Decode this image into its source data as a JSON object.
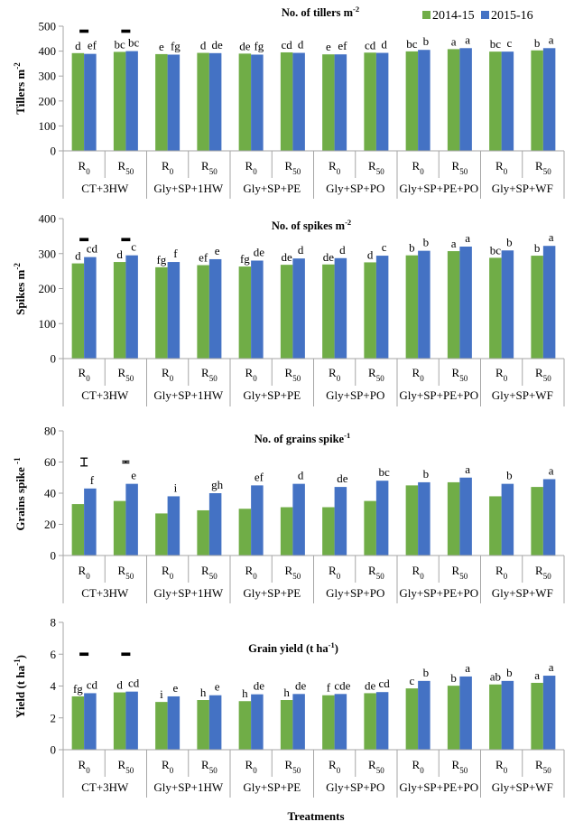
{
  "colors": {
    "series_2014": "#70ad47",
    "series_2015": "#4472c4",
    "axis": "#a6a6a6",
    "errbar": "#000000"
  },
  "legend": {
    "position": "top-right",
    "items": [
      "2014-15",
      "2015-16"
    ]
  },
  "x_axis_title": "Treatments",
  "categories": [
    "R0",
    "R50",
    "R0",
    "R50",
    "R0",
    "R50",
    "R0",
    "R50",
    "R0",
    "R50",
    "R0",
    "R50"
  ],
  "category_sub": [
    "0",
    "50",
    "0",
    "50",
    "0",
    "50",
    "0",
    "50",
    "0",
    "50",
    "0",
    "50"
  ],
  "groups": [
    "CT+3HW",
    "Gly+SP+1HW",
    "Gly+SP+PE",
    "Gly+SP+PO",
    "Gly+SP+PE+PO",
    "Gly+SP+WF"
  ],
  "chart_data": [
    {
      "type": "bar",
      "title": "No. of tillers m",
      "title_sup": "-2",
      "ylabel": "Tillers  m",
      "ylabel_sup": "-2",
      "ylim": [
        0,
        500
      ],
      "yticks": [
        0,
        100,
        200,
        300,
        400,
        500
      ],
      "series": [
        {
          "name": "2014-15",
          "values": [
            392,
            397,
            388,
            393,
            390,
            395,
            387,
            394,
            399,
            408,
            398,
            403
          ],
          "letters": [
            "d",
            "bc",
            "e",
            "d",
            "de",
            "cd",
            "e",
            "cd",
            "bc",
            "a",
            "bc",
            "b"
          ]
        },
        {
          "name": "2015-16",
          "values": [
            389,
            400,
            386,
            392,
            386,
            393,
            387,
            393,
            405,
            412,
            398,
            412
          ],
          "letters": [
            "ef",
            "bc",
            "fg",
            "de",
            "fg",
            "d",
            "ef",
            "d",
            "b",
            "a",
            "c",
            "a"
          ]
        }
      ],
      "error_bars": [
        {
          "group": 0,
          "value": 480
        },
        {
          "group": 1,
          "value": 480
        }
      ]
    },
    {
      "type": "bar",
      "title": "No. of spikes m",
      "title_sup": "-2",
      "ylabel": "Spikes  m",
      "ylabel_sup": "-2",
      "ylim": [
        0,
        400
      ],
      "yticks": [
        0,
        100,
        200,
        300,
        400
      ],
      "series": [
        {
          "name": "2014-15",
          "values": [
            272,
            276,
            261,
            267,
            263,
            268,
            269,
            275,
            295,
            307,
            288,
            294
          ],
          "letters": [
            "d",
            "d",
            "fg",
            "ef",
            "fg",
            "de",
            "de",
            "d",
            "b",
            "a",
            "bc",
            "b"
          ]
        },
        {
          "name": "2015-16",
          "values": [
            290,
            295,
            276,
            284,
            280,
            286,
            287,
            294,
            308,
            320,
            309,
            322
          ],
          "letters": [
            "cd",
            "c",
            "f",
            "e",
            "de",
            "d",
            "d",
            "c",
            "b",
            "a",
            "b",
            "a"
          ]
        }
      ],
      "error_bars": [
        {
          "group": 0,
          "value": 340
        },
        {
          "group": 1,
          "value": 340
        }
      ]
    },
    {
      "type": "bar",
      "title": "No. of grains spike",
      "title_sup": "-1",
      "ylabel": "Grains spike ",
      "ylabel_sup": "-1",
      "ylim": [
        0,
        80
      ],
      "yticks": [
        0,
        20,
        40,
        60,
        80
      ],
      "series": [
        {
          "name": "2014-15",
          "values": [
            33,
            35,
            27,
            29,
            30,
            31,
            31,
            35,
            45,
            47,
            38,
            44
          ],
          "letters": [
            "",
            "",
            "",
            "",
            "",
            "",
            "",
            "",
            "",
            "",
            "",
            ""
          ]
        },
        {
          "name": "2015-16",
          "values": [
            43,
            46,
            38,
            40,
            45,
            46,
            44,
            48,
            47,
            50,
            46,
            49
          ],
          "letters": [
            "f",
            "e",
            "i",
            "gh",
            "ef",
            "d",
            "de",
            "bc",
            "b",
            "a",
            "b",
            "a"
          ]
        }
      ],
      "error_bars": [
        {
          "group": 0,
          "value": 60,
          "half": 2.5
        },
        {
          "group": 1,
          "value": 60,
          "half": 0.6
        }
      ]
    },
    {
      "type": "bar",
      "title": "Grain yield (t ha",
      "title_sup": "-1",
      "title_end": ")",
      "ylabel": "Yield (t ha",
      "ylabel_sup": "-1",
      "ylabel_end": ")",
      "ylim": [
        0,
        8
      ],
      "yticks": [
        0,
        2,
        4,
        6,
        8
      ],
      "series": [
        {
          "name": "2014-15",
          "values": [
            3.35,
            3.6,
            3.0,
            3.12,
            3.05,
            3.12,
            3.42,
            3.55,
            3.85,
            4.02,
            4.1,
            4.2
          ],
          "letters": [
            "fg",
            "d",
            "i",
            "h",
            "h",
            "h",
            "f",
            "de",
            "c",
            "b",
            "ab",
            "a"
          ]
        },
        {
          "name": "2015-16",
          "values": [
            3.55,
            3.65,
            3.35,
            3.42,
            3.48,
            3.5,
            3.5,
            3.62,
            4.32,
            4.6,
            4.32,
            4.65
          ],
          "letters": [
            "cd",
            "cd",
            "e",
            "e",
            "de",
            "de",
            "cde",
            "cd",
            "b",
            "a",
            "b",
            "a"
          ]
        }
      ],
      "error_bars": [
        {
          "group": 0,
          "value": 6.0
        },
        {
          "group": 1,
          "value": 6.0
        }
      ]
    }
  ]
}
